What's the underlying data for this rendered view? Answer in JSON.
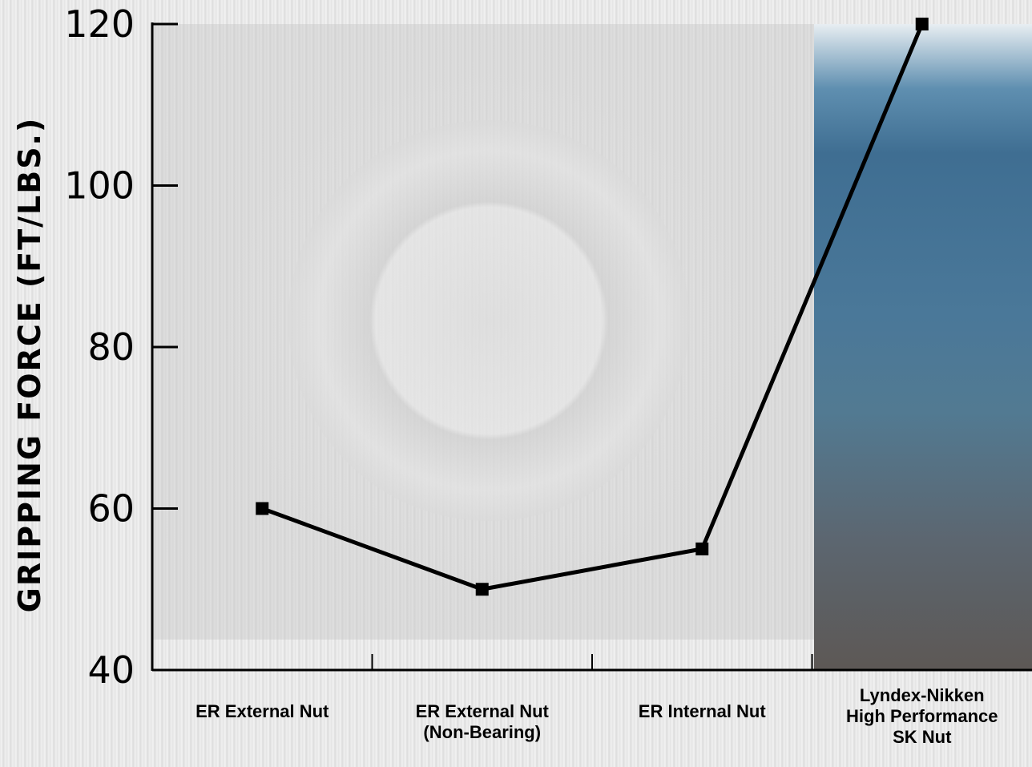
{
  "chart_data": {
    "type": "line",
    "title": "",
    "xlabel": "",
    "ylabel": "GRIPPING FORCE (FT/LBS.)",
    "ylim": [
      40,
      120
    ],
    "yticks": [
      "40",
      "60",
      "80",
      "100",
      "120"
    ],
    "categories": [
      [
        "ER External Nut"
      ],
      [
        "ER External Nut",
        "(Non-Bearing)"
      ],
      [
        "ER Internal Nut"
      ],
      [
        "Lyndex-Nikken",
        "High Performance",
        "SK Nut"
      ]
    ],
    "series": [
      {
        "values": [
          60,
          50,
          55,
          120
        ]
      }
    ],
    "grid": false,
    "legend": "none"
  },
  "colors": {
    "line": "#000000",
    "highlight_panel": "#4a7899"
  }
}
